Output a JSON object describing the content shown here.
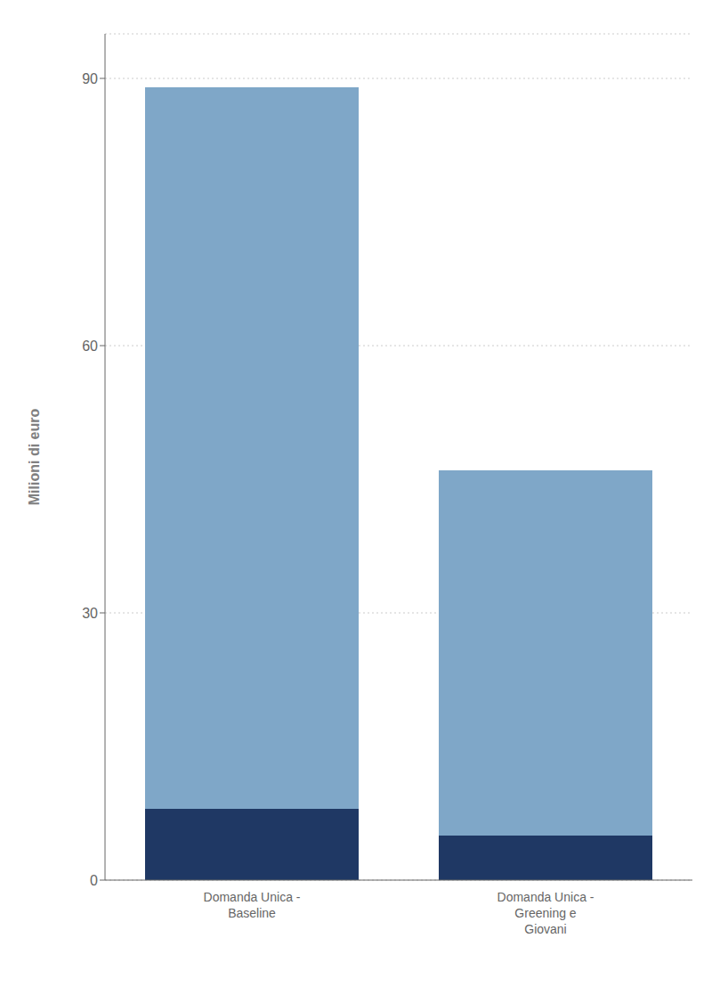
{
  "chart_data": {
    "type": "bar",
    "categories": [
      "Domanda Unica -\nBaseline",
      "Domanda Unica -\nGreening e\nGiovani"
    ],
    "series": [
      {
        "color": "#1f3864",
        "values": [
          8.0,
          5.0
        ]
      },
      {
        "color": "#7fa7c8",
        "values": [
          81.0,
          41.0
        ]
      }
    ],
    "ylabel": "Milioni di euro",
    "ylim": [
      0,
      95
    ],
    "yticks": [
      0,
      30,
      60,
      90
    ],
    "stacked": true,
    "grid": true
  }
}
